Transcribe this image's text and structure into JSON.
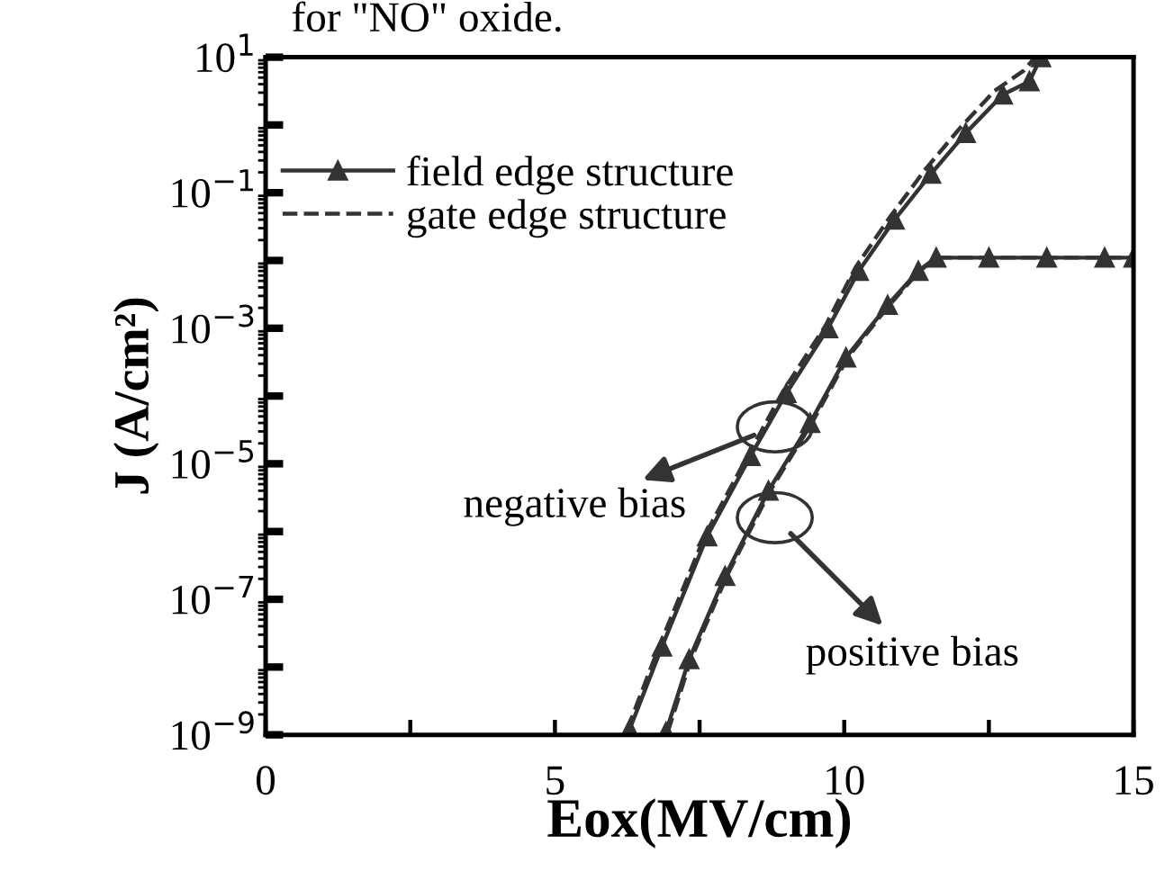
{
  "chart_data": {
    "type": "line",
    "xlabel": "Eox(MV/cm)",
    "ylabel": "J (A/cm²)",
    "log": "y",
    "xlim": [
      0,
      15
    ],
    "xticks": [
      0,
      {
        "value": 2.5,
        "label": null
      },
      5,
      {
        "value": 7.5,
        "label": null
      },
      10,
      {
        "value": 12.5,
        "label": null
      },
      15
    ],
    "ylim": [
      1e-09,
      10
    ],
    "yticks": [
      {
        "value": 1e-09,
        "label": "10$^{−9}$"
      },
      {
        "value": 1e-08,
        "label": null
      },
      {
        "value": 1e-07,
        "label": "10$^{−7}$"
      },
      {
        "value": 1e-06,
        "label": null
      },
      {
        "value": 1e-05,
        "label": "10$^{−5}$"
      },
      {
        "value": 0.0001,
        "label": null
      },
      {
        "value": 0.001,
        "label": "10$^{−3}$"
      },
      {
        "value": 0.01,
        "label": null
      },
      {
        "value": 0.1,
        "label": "10$^{−1}$"
      },
      {
        "value": 1,
        "label": null
      },
      {
        "value": 10,
        "label": "10$^{1}$"
      }
    ],
    "legend": "top left",
    "grid": false,
    "annotations": [
      "for \"NO\" oxide.",
      {
        "text": "negative bias",
        "x": 8.8,
        "y": 3.5e-05
      },
      {
        "text": "positive bias",
        "x": 8.8,
        "y": 1.6e-06
      }
    ],
    "series": [
      {
        "name": "field edge structure",
        "color": "#333333",
        "marker": "triangle",
        "line_style": "solid",
        "x": [
          6.29,
          6.85,
          7.63,
          8.38,
          9.0,
          9.72,
          10.25,
          10.87,
          11.5,
          12.1,
          12.74,
          13.2,
          13.4
        ],
        "values": [
          1.2e-09,
          2e-08,
          8.5e-07,
          1.3e-05,
          0.00011,
          0.001,
          0.007,
          0.04,
          0.19,
          0.76,
          2.8,
          4.4,
          10
        ]
      },
      {
        "name": "gate edge structure",
        "color": "#333333",
        "marker": "none",
        "line_style": "dashed",
        "x": [
          6.25,
          6.8,
          7.6,
          8.35,
          8.95,
          9.68,
          10.2,
          10.8,
          11.4,
          12.0,
          12.6,
          13.1,
          13.3
        ],
        "values": [
          1.2e-09,
          2e-08,
          9e-07,
          1.4e-05,
          0.00012,
          0.0011,
          0.008,
          0.045,
          0.22,
          0.9,
          3.2,
          6.3,
          10
        ]
      },
      {
        "color": "#333333",
        "marker": "triangle",
        "line_style": "solid",
        "x": [
          6.92,
          7.32,
          7.94,
          8.69,
          9.41,
          10.03,
          10.75,
          11.28,
          11.59,
          12.5,
          13.5,
          14.5,
          15.0
        ],
        "values": [
          1.1e-09,
          1.3e-08,
          2.2e-07,
          4e-06,
          4e-05,
          0.00037,
          0.0022,
          0.007,
          0.011,
          0.011,
          0.011,
          0.011,
          0.011
        ]
      },
      {
        "color": "#333333",
        "marker": "none",
        "line_style": "dashed",
        "x": [
          6.95,
          7.35,
          7.97,
          8.72,
          9.44,
          10.06,
          10.78,
          11.3,
          11.6,
          12.5,
          13.5,
          14.5,
          15.0
        ],
        "values": [
          1.1e-09,
          1.3e-08,
          2.2e-07,
          4e-06,
          4e-05,
          0.00037,
          0.0022,
          0.007,
          0.011,
          0.011,
          0.011,
          0.011,
          0.011
        ]
      }
    ]
  }
}
